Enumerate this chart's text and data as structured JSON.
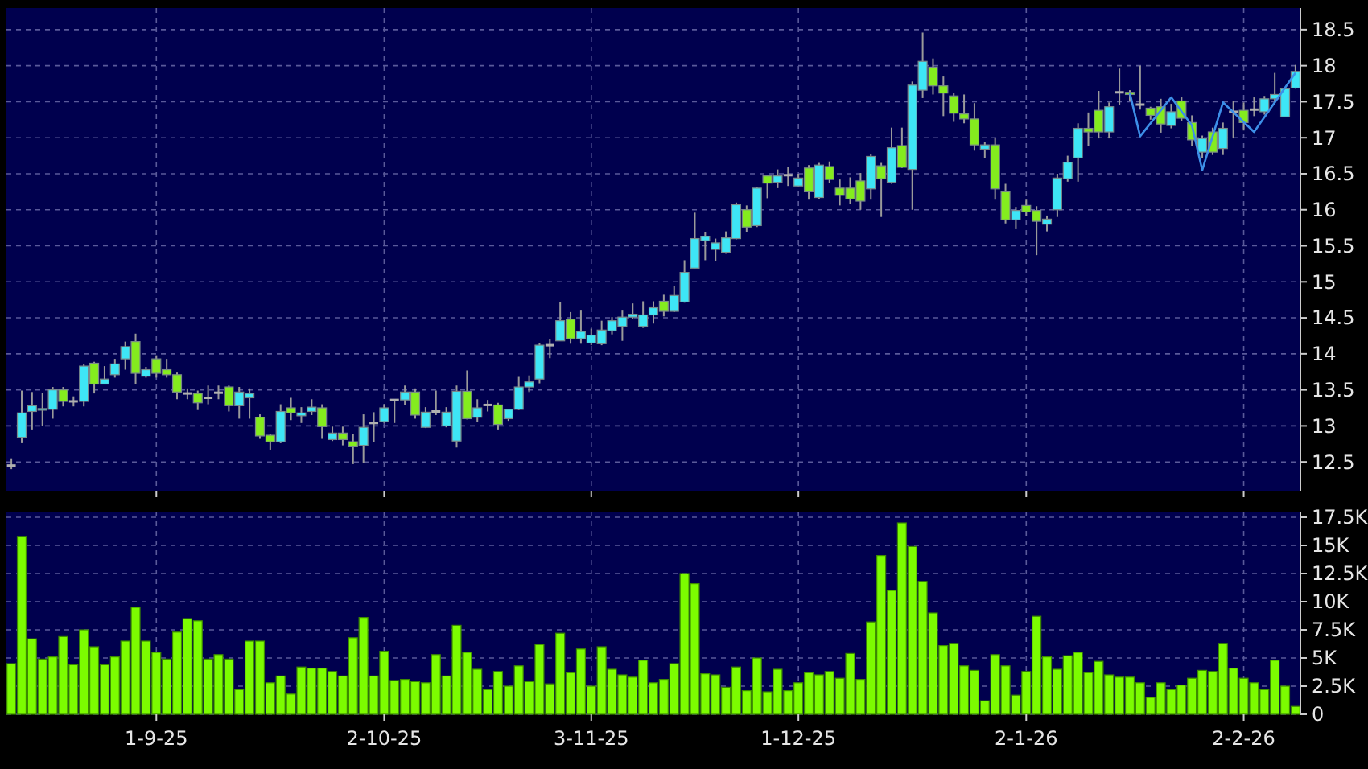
{
  "chart_data": [
    {
      "type": "candlestick",
      "tick_labels": "y",
      "grid": true,
      "ylim": [
        12.1,
        18.8
      ],
      "yticks": [
        12.5,
        13,
        13.5,
        14,
        14.5,
        15,
        15.5,
        16,
        16.5,
        17,
        17.5,
        18,
        18.5
      ],
      "ohlc": [
        [
          12.45,
          12.55,
          12.4,
          12.45
        ],
        [
          12.84,
          13.49,
          12.76,
          13.18
        ],
        [
          13.2,
          13.47,
          12.95,
          13.28
        ],
        [
          13.23,
          13.46,
          13.0,
          13.24
        ],
        [
          13.23,
          13.54,
          13.1,
          13.5
        ],
        [
          13.5,
          13.54,
          13.27,
          13.34
        ],
        [
          13.34,
          13.41,
          13.27,
          13.34
        ],
        [
          13.34,
          13.86,
          13.27,
          13.83
        ],
        [
          13.87,
          13.89,
          13.45,
          13.58
        ],
        [
          13.58,
          13.83,
          13.58,
          13.65
        ],
        [
          13.71,
          13.93,
          13.67,
          13.86
        ],
        [
          13.93,
          14.17,
          13.78,
          14.1
        ],
        [
          14.17,
          14.28,
          13.58,
          13.73
        ],
        [
          13.69,
          13.82,
          13.67,
          13.78
        ],
        [
          13.93,
          13.98,
          13.67,
          13.73
        ],
        [
          13.78,
          13.93,
          13.67,
          13.71
        ],
        [
          13.71,
          13.74,
          13.37,
          13.47
        ],
        [
          13.45,
          13.52,
          13.37,
          13.45
        ],
        [
          13.45,
          13.49,
          13.22,
          13.32
        ],
        [
          13.39,
          13.56,
          13.3,
          13.39
        ],
        [
          13.46,
          13.56,
          13.37,
          13.46
        ],
        [
          13.54,
          13.56,
          13.2,
          13.28
        ],
        [
          13.28,
          13.54,
          13.1,
          13.47
        ],
        [
          13.39,
          13.52,
          13.1,
          13.45
        ],
        [
          13.12,
          13.16,
          12.82,
          12.86
        ],
        [
          12.87,
          12.89,
          12.67,
          12.78
        ],
        [
          12.78,
          13.3,
          12.76,
          13.2
        ],
        [
          13.25,
          13.39,
          13.08,
          13.18
        ],
        [
          13.14,
          13.26,
          13.04,
          13.18
        ],
        [
          13.2,
          13.37,
          13.15,
          13.26
        ],
        [
          13.25,
          13.3,
          12.82,
          12.99
        ],
        [
          12.81,
          12.99,
          12.79,
          12.9
        ],
        [
          12.9,
          12.99,
          12.73,
          12.81
        ],
        [
          12.78,
          12.89,
          12.47,
          12.71
        ],
        [
          12.73,
          13.16,
          12.49,
          12.98
        ],
        [
          13.04,
          13.19,
          12.78,
          13.04
        ],
        [
          13.06,
          13.3,
          13.04,
          13.25
        ],
        [
          13.36,
          13.37,
          13.04,
          13.36
        ],
        [
          13.36,
          13.56,
          13.29,
          13.47
        ],
        [
          13.47,
          13.52,
          13.1,
          13.15
        ],
        [
          12.98,
          13.26,
          12.97,
          13.19
        ],
        [
          13.2,
          13.49,
          13.15,
          13.2
        ],
        [
          13.0,
          13.26,
          12.98,
          13.19
        ],
        [
          12.79,
          13.56,
          12.7,
          13.48
        ],
        [
          13.48,
          13.77,
          13.09,
          13.1
        ],
        [
          13.12,
          13.37,
          13.05,
          13.25
        ],
        [
          13.29,
          13.36,
          13.2,
          13.29
        ],
        [
          13.29,
          13.32,
          12.95,
          13.02
        ],
        [
          13.1,
          13.23,
          13.07,
          13.23
        ],
        [
          13.23,
          13.68,
          13.22,
          13.54
        ],
        [
          13.54,
          13.7,
          13.47,
          13.61
        ],
        [
          13.65,
          14.15,
          13.59,
          14.12
        ],
        [
          14.12,
          14.2,
          13.94,
          14.12
        ],
        [
          14.18,
          14.72,
          14.18,
          14.46
        ],
        [
          14.48,
          14.58,
          14.14,
          14.21
        ],
        [
          14.21,
          14.6,
          14.14,
          14.31
        ],
        [
          14.15,
          14.35,
          14.12,
          14.26
        ],
        [
          14.14,
          14.46,
          14.12,
          14.33
        ],
        [
          14.32,
          14.51,
          14.27,
          14.46
        ],
        [
          14.38,
          14.6,
          14.18,
          14.51
        ],
        [
          14.51,
          14.7,
          14.49,
          14.55
        ],
        [
          14.38,
          14.73,
          14.36,
          14.54
        ],
        [
          14.54,
          14.73,
          14.42,
          14.64
        ],
        [
          14.73,
          14.82,
          14.52,
          14.59
        ],
        [
          14.59,
          14.94,
          14.58,
          14.81
        ],
        [
          14.72,
          15.3,
          14.71,
          15.13
        ],
        [
          15.19,
          15.96,
          15.19,
          15.6
        ],
        [
          15.57,
          15.69,
          15.3,
          15.63
        ],
        [
          15.45,
          15.6,
          15.29,
          15.54
        ],
        [
          15.41,
          15.7,
          15.39,
          15.61
        ],
        [
          15.6,
          16.1,
          15.59,
          16.07
        ],
        [
          16.0,
          16.06,
          15.69,
          15.76
        ],
        [
          15.78,
          16.32,
          15.76,
          16.3
        ],
        [
          16.47,
          16.47,
          16.16,
          16.37
        ],
        [
          16.38,
          16.56,
          16.3,
          16.47
        ],
        [
          16.48,
          16.6,
          16.33,
          16.48
        ],
        [
          16.33,
          16.5,
          16.33,
          16.44
        ],
        [
          16.58,
          16.62,
          16.14,
          16.25
        ],
        [
          16.17,
          16.65,
          16.15,
          16.62
        ],
        [
          16.6,
          16.67,
          16.37,
          16.42
        ],
        [
          16.3,
          16.42,
          16.06,
          16.2
        ],
        [
          16.3,
          16.45,
          16.08,
          16.15
        ],
        [
          16.4,
          16.51,
          16.0,
          16.12
        ],
        [
          16.29,
          16.77,
          16.14,
          16.74
        ],
        [
          16.61,
          16.65,
          15.9,
          16.43
        ],
        [
          16.38,
          17.14,
          16.36,
          16.86
        ],
        [
          16.89,
          17.14,
          16.58,
          16.59
        ],
        [
          16.56,
          17.78,
          16.0,
          17.73
        ],
        [
          17.66,
          18.46,
          17.55,
          18.06
        ],
        [
          17.98,
          18.1,
          17.6,
          17.72
        ],
        [
          17.72,
          17.85,
          17.3,
          17.62
        ],
        [
          17.58,
          17.62,
          17.22,
          17.34
        ],
        [
          17.33,
          17.6,
          17.2,
          17.26
        ],
        [
          17.26,
          17.48,
          16.82,
          16.9
        ],
        [
          16.84,
          16.94,
          16.72,
          16.9
        ],
        [
          16.9,
          17.0,
          16.14,
          16.29
        ],
        [
          16.25,
          16.36,
          15.81,
          15.86
        ],
        [
          15.86,
          16.04,
          15.73,
          15.99
        ],
        [
          16.06,
          16.14,
          15.91,
          15.97
        ],
        [
          15.99,
          16.05,
          15.37,
          15.84
        ],
        [
          15.8,
          15.92,
          15.7,
          15.87
        ],
        [
          16.0,
          16.5,
          15.9,
          16.44
        ],
        [
          16.43,
          16.75,
          16.39,
          16.66
        ],
        [
          16.72,
          17.2,
          16.39,
          17.13
        ],
        [
          17.13,
          17.35,
          16.88,
          17.08
        ],
        [
          17.38,
          17.65,
          16.99,
          17.08
        ],
        [
          17.08,
          17.49,
          16.99,
          17.43
        ],
        [
          17.63,
          17.96,
          17.46,
          17.63
        ],
        [
          17.63,
          17.66,
          17.51,
          17.6
        ],
        [
          17.46,
          18.0,
          17.39,
          17.46
        ],
        [
          17.41,
          17.43,
          17.25,
          17.31
        ],
        [
          17.43,
          17.54,
          17.07,
          17.19
        ],
        [
          17.17,
          17.47,
          17.13,
          17.36
        ],
        [
          17.51,
          17.56,
          17.23,
          17.27
        ],
        [
          17.21,
          17.31,
          16.88,
          16.97
        ],
        [
          16.8,
          17.03,
          16.72,
          16.99
        ],
        [
          17.08,
          17.14,
          16.76,
          16.8
        ],
        [
          16.85,
          17.21,
          16.76,
          17.13
        ],
        [
          17.36,
          17.51,
          16.99,
          17.36
        ],
        [
          17.38,
          17.49,
          17.1,
          17.21
        ],
        [
          17.39,
          17.56,
          17.3,
          17.39
        ],
        [
          17.36,
          17.58,
          17.32,
          17.54
        ],
        [
          17.54,
          17.9,
          17.49,
          17.6
        ],
        [
          17.29,
          17.68,
          17.29,
          17.68
        ],
        [
          17.69,
          18.01,
          17.68,
          17.92
        ]
      ],
      "series": [
        {
          "type": "line",
          "color": "#3d8fe8",
          "values": [
            null,
            null,
            null,
            null,
            null,
            null,
            null,
            null,
            null,
            null,
            null,
            null,
            null,
            null,
            null,
            null,
            null,
            null,
            null,
            null,
            null,
            null,
            null,
            null,
            null,
            null,
            null,
            null,
            null,
            null,
            null,
            null,
            null,
            null,
            null,
            null,
            null,
            null,
            null,
            null,
            null,
            null,
            null,
            null,
            null,
            null,
            null,
            null,
            null,
            null,
            null,
            null,
            null,
            null,
            null,
            null,
            null,
            null,
            null,
            null,
            null,
            null,
            null,
            null,
            null,
            null,
            null,
            null,
            null,
            null,
            null,
            null,
            null,
            null,
            null,
            null,
            null,
            null,
            null,
            null,
            null,
            null,
            null,
            null,
            null,
            null,
            null,
            null,
            null,
            null,
            null,
            null,
            null,
            null,
            null,
            null,
            null,
            null,
            null,
            null,
            null,
            null,
            null,
            null,
            null,
            null,
            null,
            null,
            17.62,
            17.02,
            null,
            null,
            17.56,
            null,
            17.17,
            16.55,
            null,
            17.49,
            null,
            null,
            17.08,
            null,
            null,
            null,
            17.9
          ]
        }
      ]
    },
    {
      "type": "bar",
      "grid": true,
      "ylim": [
        0,
        18000
      ],
      "yticks": [
        {
          "value": 0,
          "label": "0"
        },
        {
          "value": 2500,
          "label": "2.5K"
        },
        {
          "value": 5000,
          "label": "5K"
        },
        {
          "value": 7500,
          "label": "7.5K"
        },
        {
          "value": 10000,
          "label": "10K"
        },
        {
          "value": 12500,
          "label": "12.5K"
        },
        {
          "value": 15000,
          "label": "15K"
        },
        {
          "value": 17500,
          "label": "17.5K"
        }
      ],
      "categories": [
        null,
        null,
        null,
        null,
        null,
        null,
        null,
        null,
        null,
        null,
        null,
        null,
        null,
        null,
        "1-9-25",
        null,
        null,
        null,
        null,
        null,
        null,
        null,
        null,
        null,
        null,
        null,
        null,
        null,
        null,
        null,
        null,
        null,
        null,
        null,
        null,
        null,
        "2-10-25",
        null,
        null,
        null,
        null,
        null,
        null,
        null,
        null,
        null,
        null,
        null,
        null,
        null,
        null,
        null,
        null,
        null,
        null,
        null,
        "3-11-25",
        null,
        null,
        null,
        null,
        null,
        null,
        null,
        null,
        null,
        null,
        null,
        null,
        null,
        null,
        null,
        null,
        null,
        null,
        null,
        "1-12-25",
        null,
        null,
        null,
        null,
        null,
        null,
        null,
        null,
        null,
        null,
        null,
        null,
        null,
        null,
        null,
        null,
        null,
        null,
        null,
        null,
        null,
        "2-1-26",
        null,
        null,
        null,
        null,
        null,
        null,
        null,
        null,
        null,
        null,
        null,
        null,
        null,
        null,
        null,
        null,
        null,
        null,
        null,
        null,
        "2-2-26",
        null,
        null,
        null,
        null,
        null
      ],
      "series": [
        {
          "color": "#7cfc00",
          "values": [
            4500,
            15800,
            6700,
            4900,
            5100,
            6900,
            4400,
            7500,
            6000,
            4400,
            5100,
            6500,
            9500,
            6500,
            5500,
            4900,
            7300,
            8500,
            8300,
            4900,
            5300,
            4900,
            2200,
            6500,
            6500,
            2800,
            3400,
            1800,
            4200,
            4100,
            4100,
            3800,
            3400,
            6800,
            8600,
            3400,
            5600,
            3000,
            3100,
            2900,
            2800,
            5300,
            3400,
            7900,
            5500,
            4000,
            2200,
            3800,
            2500,
            4300,
            2900,
            6200,
            2700,
            7200,
            3700,
            5800,
            2500,
            6000,
            4000,
            3500,
            3300,
            4800,
            2800,
            3100,
            4500,
            12500,
            11600,
            3600,
            3500,
            2400,
            4200,
            2100,
            5000,
            2000,
            4000,
            2100,
            2800,
            3700,
            3500,
            3800,
            3200,
            5400,
            3100,
            8200,
            14100,
            11000,
            17000,
            14900,
            11800,
            9000,
            6100,
            6300,
            4300,
            3900,
            1200,
            5300,
            4300,
            1700,
            3800,
            8700,
            5100,
            4000,
            5200,
            5500,
            3700,
            4700,
            3500,
            3300,
            3300,
            2800,
            1500,
            2800,
            2200,
            2600,
            3200,
            3900,
            3800,
            6300,
            4100,
            3200,
            2800,
            2200,
            4800,
            2500,
            700
          ]
        }
      ]
    }
  ]
}
